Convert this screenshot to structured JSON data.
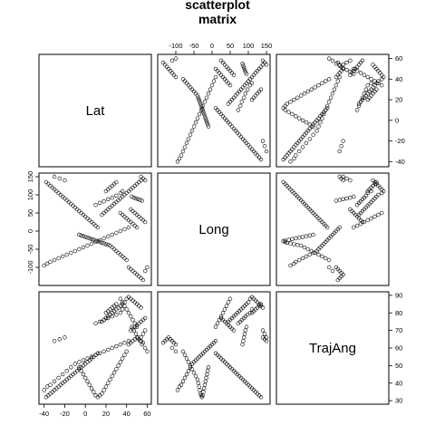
{
  "title": [
    "scatterplot",
    "matrix"
  ],
  "chart_data": {
    "type": "scatter",
    "kind": "scatterplot matrix",
    "variables": [
      "Lat",
      "Long",
      "TrajAng"
    ],
    "axes": {
      "Lat": {
        "range": [
          -45,
          64
        ],
        "ticks": [
          -40,
          -20,
          0,
          20,
          40,
          60
        ]
      },
      "Long": {
        "range": [
          -150,
          160
        ],
        "ticks": [
          -100,
          -50,
          0,
          50,
          100,
          150
        ]
      },
      "TrajAng": {
        "range": [
          28,
          92
        ],
        "ticks": [
          30,
          40,
          50,
          60,
          70,
          80,
          90
        ]
      }
    },
    "tick_placement": {
      "top": [
        1
      ],
      "right": [
        2,
        0
      ],
      "left": [
        1
      ],
      "bottom": [
        0
      ]
    },
    "observations": [
      {
        "Lat": -38,
        "Long": 135,
        "TrajAng": 32
      },
      {
        "Lat": -36,
        "Long": 130,
        "TrajAng": 33
      },
      {
        "Lat": -34,
        "Long": 125,
        "TrajAng": 34
      },
      {
        "Lat": -32,
        "Long": 120,
        "TrajAng": 35
      },
      {
        "Lat": -30,
        "Long": 115,
        "TrajAng": 36
      },
      {
        "Lat": -28,
        "Long": 110,
        "TrajAng": 37
      },
      {
        "Lat": -26,
        "Long": 105,
        "TrajAng": 38
      },
      {
        "Lat": -24,
        "Long": 100,
        "TrajAng": 39
      },
      {
        "Lat": -22,
        "Long": 95,
        "TrajAng": 40
      },
      {
        "Lat": -20,
        "Long": 90,
        "TrajAng": 41
      },
      {
        "Lat": -18,
        "Long": 85,
        "TrajAng": 42
      },
      {
        "Lat": -16,
        "Long": 80,
        "TrajAng": 43
      },
      {
        "Lat": -14,
        "Long": 75,
        "TrajAng": 44
      },
      {
        "Lat": -12,
        "Long": 70,
        "TrajAng": 45
      },
      {
        "Lat": -10,
        "Long": 65,
        "TrajAng": 46
      },
      {
        "Lat": -8,
        "Long": 60,
        "TrajAng": 47
      },
      {
        "Lat": -6,
        "Long": 55,
        "TrajAng": 48
      },
      {
        "Lat": -4,
        "Long": 50,
        "TrajAng": 49
      },
      {
        "Lat": -2,
        "Long": 45,
        "TrajAng": 50
      },
      {
        "Lat": 0,
        "Long": 40,
        "TrajAng": 51
      },
      {
        "Lat": 2,
        "Long": 35,
        "TrajAng": 52
      },
      {
        "Lat": 4,
        "Long": 30,
        "TrajAng": 53
      },
      {
        "Lat": 6,
        "Long": 25,
        "TrajAng": 54
      },
      {
        "Lat": 8,
        "Long": 20,
        "TrajAng": 55
      },
      {
        "Lat": 10,
        "Long": 15,
        "TrajAng": 56
      },
      {
        "Lat": 12,
        "Long": 10,
        "TrajAng": 57
      },
      {
        "Lat": -40,
        "Long": -95,
        "TrajAng": 36
      },
      {
        "Lat": -37,
        "Long": -90,
        "TrajAng": 38
      },
      {
        "Lat": -34,
        "Long": -85,
        "TrajAng": 39
      },
      {
        "Lat": -30,
        "Long": -80,
        "TrajAng": 41
      },
      {
        "Lat": -26,
        "Long": -75,
        "TrajAng": 43
      },
      {
        "Lat": -22,
        "Long": -70,
        "TrajAng": 45
      },
      {
        "Lat": -18,
        "Long": -65,
        "TrajAng": 47
      },
      {
        "Lat": -14,
        "Long": -60,
        "TrajAng": 49
      },
      {
        "Lat": -10,
        "Long": -55,
        "TrajAng": 51
      },
      {
        "Lat": -6,
        "Long": -50,
        "TrajAng": 52
      },
      {
        "Lat": -2,
        "Long": -45,
        "TrajAng": 53
      },
      {
        "Lat": 2,
        "Long": -40,
        "TrajAng": 54
      },
      {
        "Lat": 6,
        "Long": -35,
        "TrajAng": 55
      },
      {
        "Lat": 10,
        "Long": -30,
        "TrajAng": 56
      },
      {
        "Lat": 14,
        "Long": -25,
        "TrajAng": 57
      },
      {
        "Lat": 18,
        "Long": -20,
        "TrajAng": 58
      },
      {
        "Lat": 22,
        "Long": -15,
        "TrajAng": 59
      },
      {
        "Lat": 26,
        "Long": -10,
        "TrajAng": 60
      },
      {
        "Lat": 30,
        "Long": -5,
        "TrajAng": 61
      },
      {
        "Lat": 34,
        "Long": 0,
        "TrajAng": 62
      },
      {
        "Lat": 38,
        "Long": 5,
        "TrajAng": 63
      },
      {
        "Lat": 42,
        "Long": 10,
        "TrajAng": 64
      },
      {
        "Lat": 40,
        "Long": 105,
        "TrajAng": 88
      },
      {
        "Lat": 42,
        "Long": 110,
        "TrajAng": 89
      },
      {
        "Lat": 44,
        "Long": 115,
        "TrajAng": 88
      },
      {
        "Lat": 46,
        "Long": 120,
        "TrajAng": 87
      },
      {
        "Lat": 38,
        "Long": 100,
        "TrajAng": 86
      },
      {
        "Lat": 36,
        "Long": 95,
        "TrajAng": 85
      },
      {
        "Lat": 34,
        "Long": 90,
        "TrajAng": 84
      },
      {
        "Lat": 32,
        "Long": 85,
        "TrajAng": 83
      },
      {
        "Lat": 30,
        "Long": 80,
        "TrajAng": 82
      },
      {
        "Lat": 28,
        "Long": 75,
        "TrajAng": 81
      },
      {
        "Lat": 26,
        "Long": 70,
        "TrajAng": 80
      },
      {
        "Lat": 24,
        "Long": 65,
        "TrajAng": 79
      },
      {
        "Lat": 22,
        "Long": 60,
        "TrajAng": 78
      },
      {
        "Lat": 20,
        "Long": 55,
        "TrajAng": 77
      },
      {
        "Lat": 18,
        "Long": 50,
        "TrajAng": 76
      },
      {
        "Lat": 16,
        "Long": 45,
        "TrajAng": 75
      },
      {
        "Lat": 48,
        "Long": 125,
        "TrajAng": 86
      },
      {
        "Lat": 50,
        "Long": 130,
        "TrajAng": 85
      },
      {
        "Lat": 52,
        "Long": 135,
        "TrajAng": 84
      },
      {
        "Lat": 54,
        "Long": 140,
        "TrajAng": 83
      },
      {
        "Lat": 36,
        "Long": 110,
        "TrajAng": 82
      },
      {
        "Lat": 34,
        "Long": 105,
        "TrajAng": 80
      },
      {
        "Lat": 30,
        "Long": 98,
        "TrajAng": 79
      },
      {
        "Lat": 26,
        "Long": 92,
        "TrajAng": 78
      },
      {
        "Lat": 22,
        "Long": 88,
        "TrajAng": 77
      },
      {
        "Lat": 18,
        "Long": 82,
        "TrajAng": 76
      },
      {
        "Lat": 14,
        "Long": 78,
        "TrajAng": 75
      },
      {
        "Lat": 10,
        "Long": 72,
        "TrajAng": 74
      },
      {
        "Lat": 45,
        "Long": 95,
        "TrajAng": 72
      },
      {
        "Lat": 47,
        "Long": 92,
        "TrajAng": 70
      },
      {
        "Lat": 49,
        "Long": 90,
        "TrajAng": 68
      },
      {
        "Lat": 51,
        "Long": 88,
        "TrajAng": 66
      },
      {
        "Lat": 53,
        "Long": 86,
        "TrajAng": 64
      },
      {
        "Lat": 55,
        "Long": 84,
        "TrajAng": 62
      },
      {
        "Lat": 44,
        "Long": 60,
        "TrajAng": 70
      },
      {
        "Lat": 46,
        "Long": 55,
        "TrajAng": 71
      },
      {
        "Lat": 48,
        "Long": 50,
        "TrajAng": 72
      },
      {
        "Lat": 50,
        "Long": 45,
        "TrajAng": 73
      },
      {
        "Lat": 52,
        "Long": 40,
        "TrajAng": 74
      },
      {
        "Lat": 54,
        "Long": 35,
        "TrajAng": 75
      },
      {
        "Lat": 56,
        "Long": 30,
        "TrajAng": 76
      },
      {
        "Lat": 58,
        "Long": 25,
        "TrajAng": 77
      },
      {
        "Lat": 42,
        "Long": -100,
        "TrajAng": 62
      },
      {
        "Lat": 44,
        "Long": -105,
        "TrajAng": 63
      },
      {
        "Lat": 46,
        "Long": -110,
        "TrajAng": 64
      },
      {
        "Lat": 48,
        "Long": -115,
        "TrajAng": 65
      },
      {
        "Lat": 50,
        "Long": -120,
        "TrajAng": 66
      },
      {
        "Lat": 52,
        "Long": -125,
        "TrajAng": 65
      },
      {
        "Lat": 54,
        "Long": -130,
        "TrajAng": 64
      },
      {
        "Lat": 56,
        "Long": -135,
        "TrajAng": 63
      },
      {
        "Lat": 40,
        "Long": -80,
        "TrajAng": 58
      },
      {
        "Lat": 38,
        "Long": -75,
        "TrajAng": 56
      },
      {
        "Lat": 36,
        "Long": -70,
        "TrajAng": 54
      },
      {
        "Lat": 34,
        "Long": -65,
        "TrajAng": 52
      },
      {
        "Lat": 32,
        "Long": -60,
        "TrajAng": 50
      },
      {
        "Lat": 30,
        "Long": -55,
        "TrajAng": 48
      },
      {
        "Lat": 28,
        "Long": -50,
        "TrajAng": 46
      },
      {
        "Lat": 26,
        "Long": -45,
        "TrajAng": 44
      },
      {
        "Lat": 24,
        "Long": -40,
        "TrajAng": 42
      },
      {
        "Lat": 22,
        "Long": -38,
        "TrajAng": 40
      },
      {
        "Lat": 20,
        "Long": -36,
        "TrajAng": 38
      },
      {
        "Lat": 18,
        "Long": -34,
        "TrajAng": 36
      },
      {
        "Lat": 16,
        "Long": -32,
        "TrajAng": 34
      },
      {
        "Lat": 14,
        "Long": -30,
        "TrajAng": 33
      },
      {
        "Lat": 12,
        "Long": -28,
        "TrajAng": 32
      },
      {
        "Lat": 10,
        "Long": -26,
        "TrajAng": 33
      },
      {
        "Lat": 8,
        "Long": -24,
        "TrajAng": 35
      },
      {
        "Lat": 6,
        "Long": -22,
        "TrajAng": 37
      },
      {
        "Lat": 4,
        "Long": -20,
        "TrajAng": 39
      },
      {
        "Lat": 2,
        "Long": -18,
        "TrajAng": 41
      },
      {
        "Lat": 0,
        "Long": -16,
        "TrajAng": 43
      },
      {
        "Lat": -2,
        "Long": -14,
        "TrajAng": 45
      },
      {
        "Lat": -4,
        "Long": -12,
        "TrajAng": 47
      },
      {
        "Lat": -6,
        "Long": -10,
        "TrajAng": 49
      },
      {
        "Lat": 50,
        "Long": 10,
        "TrajAng": 72
      },
      {
        "Lat": 48,
        "Long": 15,
        "TrajAng": 74
      },
      {
        "Lat": 46,
        "Long": 20,
        "TrajAng": 76
      },
      {
        "Lat": 44,
        "Long": 25,
        "TrajAng": 78
      },
      {
        "Lat": 42,
        "Long": 30,
        "TrajAng": 80
      },
      {
        "Lat": 40,
        "Long": 35,
        "TrajAng": 82
      },
      {
        "Lat": 38,
        "Long": 40,
        "TrajAng": 84
      },
      {
        "Lat": 36,
        "Long": 45,
        "TrajAng": 86
      },
      {
        "Lat": 34,
        "Long": 50,
        "TrajAng": 88
      },
      {
        "Lat": 58,
        "Long": 140,
        "TrajAng": 70
      },
      {
        "Lat": 56,
        "Long": 145,
        "TrajAng": 68
      },
      {
        "Lat": 54,
        "Long": 150,
        "TrajAng": 66
      },
      {
        "Lat": 20,
        "Long": 110,
        "TrajAng": 80
      },
      {
        "Lat": 22,
        "Long": 115,
        "TrajAng": 81
      },
      {
        "Lat": 24,
        "Long": 120,
        "TrajAng": 82
      },
      {
        "Lat": 26,
        "Long": 125,
        "TrajAng": 83
      },
      {
        "Lat": 28,
        "Long": 130,
        "TrajAng": 84
      },
      {
        "Lat": 30,
        "Long": 135,
        "TrajAng": 85
      },
      {
        "Lat": 58,
        "Long": -110,
        "TrajAng": 60
      },
      {
        "Lat": 60,
        "Long": -100,
        "TrajAng": 58
      },
      {
        "Lat": -20,
        "Long": 140,
        "TrajAng": 66
      },
      {
        "Lat": -25,
        "Long": 145,
        "TrajAng": 65
      },
      {
        "Lat": -30,
        "Long": 150,
        "TrajAng": 64
      }
    ]
  }
}
